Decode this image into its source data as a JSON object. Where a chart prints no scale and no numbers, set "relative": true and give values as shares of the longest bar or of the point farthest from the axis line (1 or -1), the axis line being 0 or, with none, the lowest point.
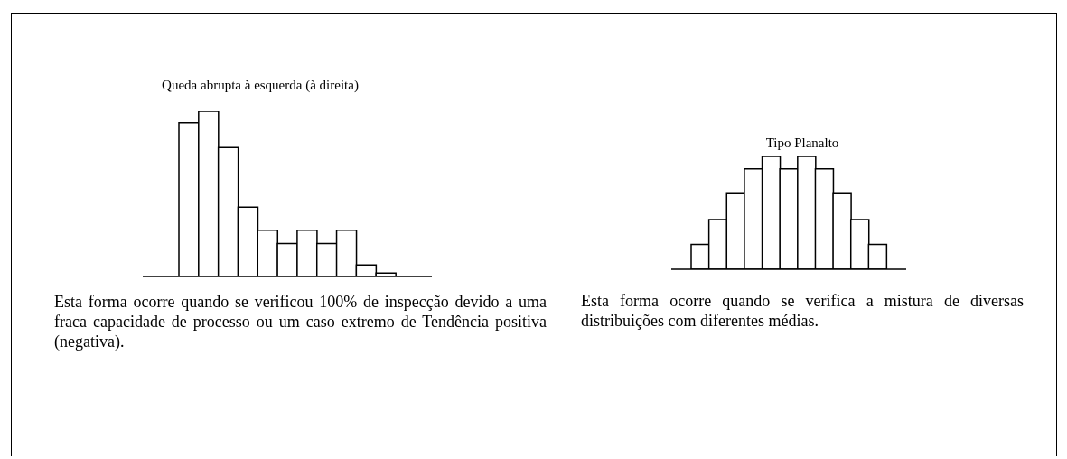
{
  "chart_data": [
    {
      "type": "bar",
      "title": "Queda abrupta à esquerda (à direita)",
      "relative": true,
      "color": "#ffffff",
      "categories": [
        null,
        null,
        null,
        null,
        null,
        null,
        null,
        null,
        null,
        null,
        null
      ],
      "values": [
        0.93,
        1,
        0.78,
        0.42,
        0.28,
        0.2,
        0.28,
        0.2,
        0.28,
        0.07,
        0.02
      ],
      "annotations": [
        "Esta forma ocorre quando se verificou 100% de inspecção devido a uma fraca capacidade de processo ou um caso extremo de Tendência positiva (negativa)."
      ]
    },
    {
      "type": "bar",
      "title": "Tipo Planalto",
      "relative": true,
      "color": "#ffffff",
      "categories": [
        null,
        null,
        null,
        null,
        null,
        null,
        null,
        null,
        null,
        null,
        null
      ],
      "values": [
        0.22,
        0.44,
        0.67,
        0.89,
        1,
        0.89,
        1,
        0.89,
        0.67,
        0.44,
        0.22
      ],
      "annotations": [
        "Esta forma ocorre quando se verifica a mistura de diversas distribuições com diferentes médias."
      ]
    }
  ]
}
